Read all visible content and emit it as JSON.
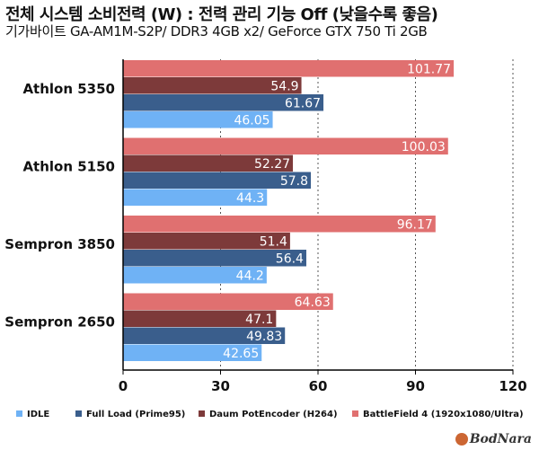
{
  "title": "전체 시스템 소비전력 (W) : 전력 관리 기능 Off (낮을수록 좋음)",
  "subtitle": "기가바이트 GA-AM1M-S2P/ DDR3 4GB x2/ GeForce GTX 750 Ti 2GB",
  "watermark": "BodNara",
  "chart_data": {
    "type": "bar",
    "orientation": "horizontal",
    "categories": [
      "Athlon 5350",
      "Athlon 5150",
      "Sempron 3850",
      "Sempron 2650"
    ],
    "xlim": [
      0,
      120
    ],
    "xticks": [
      0,
      30,
      60,
      90,
      120
    ],
    "grid": "vertical dotted",
    "legend": "bottom",
    "series": [
      {
        "name": "IDLE",
        "color": "#6fb2f5",
        "values": [
          46.05,
          44.3,
          44.2,
          42.65
        ]
      },
      {
        "name": "Full Load (Prime95)",
        "color": "#3a5e8c",
        "values": [
          61.67,
          57.8,
          56.4,
          49.83
        ]
      },
      {
        "name": "Daum PotEncoder (H264)",
        "color": "#7d3a3a",
        "values": [
          54.9,
          52.27,
          51.4,
          47.1
        ]
      },
      {
        "name": "BattleField 4 (1920x1080/Ultra)",
        "color": "#e07070",
        "values": [
          101.77,
          100.03,
          96.17,
          64.63
        ]
      }
    ],
    "value_labels": [
      [
        "46.05",
        "44.3",
        "44.2",
        "42.65"
      ],
      [
        "61.67",
        "57.8",
        "56.4",
        "49.83"
      ],
      [
        "54.9",
        "52.27",
        "51.4",
        "47.1"
      ],
      [
        "101.77",
        "100.03",
        "96.17",
        "64.63"
      ]
    ],
    "tick_labels": [
      "0",
      "30",
      "60",
      "90",
      "120"
    ]
  }
}
